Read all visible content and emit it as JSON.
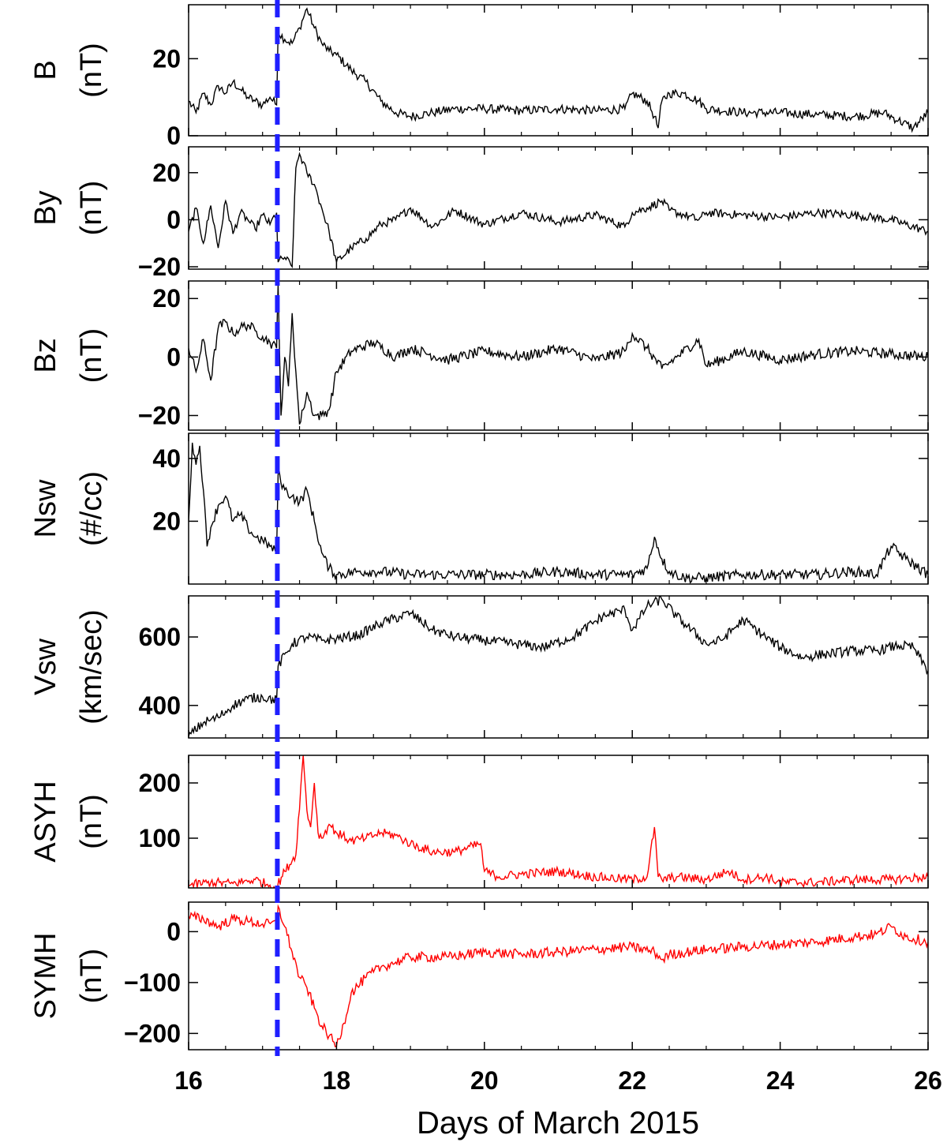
{
  "figure": {
    "xlabel": "Days of March 2015",
    "xlim": [
      16,
      26
    ],
    "xticks": [
      16,
      18,
      20,
      22,
      24,
      26
    ],
    "event_marker": {
      "x": 17.2,
      "color": "#1f1fff",
      "style": "dashed"
    }
  },
  "chart_data": [
    {
      "type": "line",
      "name_line1": "B",
      "name_line2": "(nT)",
      "color": "#000000",
      "ylim": [
        0,
        34
      ],
      "yticks": [
        0,
        20
      ],
      "ytick_labels": [
        "0",
        "20"
      ],
      "x": [
        16.0,
        16.1,
        16.2,
        16.3,
        16.4,
        16.5,
        16.6,
        16.7,
        16.8,
        16.9,
        17.0,
        17.1,
        17.19,
        17.21,
        17.3,
        17.4,
        17.5,
        17.6,
        17.7,
        17.8,
        17.9,
        18.0,
        18.2,
        18.4,
        18.6,
        18.8,
        19.0,
        19.3,
        19.6,
        20.0,
        20.5,
        21.0,
        21.5,
        21.9,
        22.0,
        22.2,
        22.3,
        22.35,
        22.4,
        22.5,
        22.7,
        22.9,
        23.0,
        23.5,
        24.0,
        24.5,
        25.0,
        25.4,
        25.6,
        25.8,
        26.0
      ],
      "y": [
        9,
        6,
        11,
        8,
        13,
        11,
        14,
        12,
        10,
        9,
        8,
        10,
        8,
        27,
        25,
        24,
        28,
        33,
        28,
        24,
        22,
        21,
        17,
        14,
        9,
        6,
        5,
        6,
        7,
        7,
        6.5,
        7,
        6.5,
        7,
        11,
        9,
        5,
        2,
        9,
        11,
        11,
        9,
        7,
        6,
        6,
        5.5,
        5,
        6,
        4,
        2,
        6
      ]
    },
    {
      "type": "line",
      "name_line1": "By",
      "name_line2": "(nT)",
      "color": "#000000",
      "ylim": [
        -21,
        31
      ],
      "yticks": [
        -20,
        0,
        20
      ],
      "ytick_labels": [
        "−20",
        "0",
        "20"
      ],
      "x": [
        16.0,
        16.1,
        16.2,
        16.3,
        16.4,
        16.5,
        16.6,
        16.7,
        16.8,
        16.9,
        17.0,
        17.1,
        17.19,
        17.21,
        17.3,
        17.4,
        17.45,
        17.5,
        17.6,
        17.7,
        17.8,
        17.9,
        18.0,
        18.2,
        18.4,
        18.6,
        18.8,
        19.0,
        19.3,
        19.6,
        20.0,
        20.5,
        21.0,
        21.5,
        21.9,
        22.0,
        22.2,
        22.4,
        22.5,
        22.7,
        22.9,
        23.0,
        23.5,
        24.0,
        24.5,
        25.0,
        25.5,
        26.0
      ],
      "y": [
        -5,
        5,
        -10,
        6,
        -12,
        8,
        -6,
        3,
        0,
        -4,
        2,
        -2,
        3,
        -18,
        -16,
        -20,
        22,
        28,
        20,
        15,
        5,
        -5,
        -18,
        -12,
        -8,
        -2,
        0,
        5,
        -3,
        4,
        -2,
        3,
        -1,
        2,
        -3,
        3,
        5,
        8,
        4,
        2,
        0,
        3,
        2,
        1,
        3,
        2,
        0,
        -5
      ]
    },
    {
      "type": "line",
      "name_line1": "Bz",
      "name_line2": "(nT)",
      "color": "#000000",
      "ylim": [
        -25,
        26
      ],
      "yticks": [
        -20,
        0,
        20
      ],
      "ytick_labels": [
        "−20",
        "0",
        "20"
      ],
      "x": [
        16.0,
        16.1,
        16.2,
        16.3,
        16.4,
        16.5,
        16.6,
        16.7,
        16.8,
        16.9,
        17.0,
        17.1,
        17.19,
        17.21,
        17.25,
        17.3,
        17.35,
        17.4,
        17.45,
        17.5,
        17.55,
        17.6,
        17.7,
        17.8,
        17.9,
        18.0,
        18.2,
        18.5,
        18.8,
        19.0,
        19.5,
        20.0,
        20.5,
        21.0,
        21.5,
        21.9,
        22.0,
        22.2,
        22.4,
        22.6,
        22.9,
        23.0,
        23.5,
        24.0,
        24.5,
        25.0,
        25.5,
        26.0
      ],
      "y": [
        3,
        -5,
        6,
        -8,
        10,
        12,
        8,
        10,
        11,
        9,
        7,
        5,
        3,
        25,
        -20,
        0,
        -10,
        15,
        -5,
        -23,
        -18,
        -12,
        -20,
        -20,
        -18,
        -5,
        2,
        5,
        0,
        3,
        -1,
        2,
        0,
        3,
        -1,
        2,
        8,
        3,
        -4,
        0,
        6,
        -3,
        2,
        -1,
        1,
        2,
        1,
        0
      ]
    },
    {
      "type": "line",
      "name_line1": "Nsw",
      "name_line2": "(#/cc)",
      "color": "#000000",
      "ylim": [
        0,
        48
      ],
      "yticks": [
        20,
        40
      ],
      "ytick_labels": [
        "20",
        "40"
      ],
      "x": [
        16.0,
        16.05,
        16.1,
        16.15,
        16.2,
        16.25,
        16.3,
        16.4,
        16.5,
        16.6,
        16.7,
        16.8,
        16.9,
        17.0,
        17.1,
        17.19,
        17.21,
        17.3,
        17.4,
        17.5,
        17.6,
        17.7,
        17.8,
        17.9,
        18.0,
        18.3,
        18.6,
        19.0,
        19.5,
        20.0,
        20.5,
        21.0,
        21.5,
        21.9,
        22.0,
        22.2,
        22.3,
        22.4,
        22.5,
        22.7,
        23.0,
        23.5,
        24.0,
        24.5,
        25.0,
        25.3,
        25.5,
        25.7,
        26.0
      ],
      "y": [
        20,
        45,
        38,
        44,
        30,
        12,
        18,
        25,
        28,
        20,
        22,
        18,
        15,
        14,
        12,
        10,
        35,
        30,
        28,
        26,
        30,
        20,
        10,
        5,
        3,
        4,
        4,
        3,
        3,
        3,
        3,
        4,
        3,
        3,
        3,
        5,
        15,
        8,
        4,
        2,
        2,
        3,
        3,
        3,
        4,
        3,
        12,
        8,
        3
      ]
    },
    {
      "type": "line",
      "name_line1": "Vsw",
      "name_line2": "(km/sec)",
      "color": "#000000",
      "ylim": [
        305,
        720
      ],
      "yticks": [
        400,
        600
      ],
      "ytick_labels": [
        "400",
        "600"
      ],
      "x": [
        16.0,
        16.2,
        16.4,
        16.6,
        16.8,
        17.0,
        17.19,
        17.21,
        17.4,
        17.6,
        17.8,
        18.0,
        18.3,
        18.6,
        19.0,
        19.3,
        19.6,
        20.0,
        20.4,
        20.8,
        21.2,
        21.6,
        21.9,
        22.0,
        22.2,
        22.4,
        22.6,
        22.8,
        23.0,
        23.2,
        23.5,
        23.8,
        24.0,
        24.3,
        24.6,
        25.0,
        25.3,
        25.6,
        25.8,
        26.0
      ],
      "y": [
        310,
        350,
        365,
        400,
        420,
        425,
        415,
        515,
        580,
        600,
        590,
        595,
        605,
        640,
        670,
        620,
        600,
        590,
        580,
        570,
        600,
        660,
        680,
        620,
        690,
        710,
        660,
        620,
        580,
        590,
        650,
        600,
        570,
        540,
        550,
        560,
        560,
        575,
        570,
        500
      ]
    },
    {
      "type": "line",
      "name_line1": "ASYH",
      "name_line2": "(nT)",
      "color": "#ff0000",
      "ylim": [
        10,
        250
      ],
      "yticks": [
        100,
        200
      ],
      "ytick_labels": [
        "100",
        "200"
      ],
      "x": [
        16.0,
        16.3,
        16.6,
        16.9,
        17.1,
        17.19,
        17.3,
        17.45,
        17.55,
        17.6,
        17.65,
        17.7,
        17.75,
        17.8,
        17.9,
        18.0,
        18.2,
        18.4,
        18.6,
        18.8,
        19.0,
        19.3,
        19.6,
        19.95,
        20.0,
        20.2,
        20.5,
        21.0,
        21.5,
        22.0,
        22.2,
        22.3,
        22.35,
        22.4,
        22.6,
        23.0,
        23.3,
        23.5,
        23.8,
        24.0,
        24.5,
        25.0,
        25.5,
        26.0
      ],
      "y": [
        15,
        20,
        18,
        25,
        15,
        12,
        40,
        70,
        250,
        150,
        120,
        200,
        110,
        100,
        125,
        110,
        95,
        100,
        110,
        105,
        90,
        75,
        75,
        90,
        40,
        30,
        35,
        40,
        30,
        25,
        30,
        120,
        30,
        25,
        30,
        25,
        40,
        25,
        30,
        20,
        20,
        25,
        25,
        30
      ]
    },
    {
      "type": "line",
      "name_line1": "SYMH",
      "name_line2": "(nT)",
      "color": "#ff0000",
      "ylim": [
        -232,
        58
      ],
      "yticks": [
        -200,
        -100,
        0
      ],
      "ytick_labels": [
        "−200",
        "−100",
        "0"
      ],
      "x": [
        16.0,
        16.2,
        16.4,
        16.6,
        16.8,
        17.0,
        17.19,
        17.21,
        17.3,
        17.4,
        17.5,
        17.6,
        17.7,
        17.8,
        17.9,
        18.0,
        18.1,
        18.2,
        18.4,
        18.6,
        18.8,
        19.0,
        19.5,
        20.0,
        20.5,
        21.0,
        21.5,
        22.0,
        22.3,
        22.4,
        22.5,
        23.0,
        23.5,
        24.0,
        24.5,
        25.0,
        25.3,
        25.5,
        25.7,
        26.0
      ],
      "y": [
        30,
        25,
        10,
        25,
        20,
        15,
        15,
        50,
        10,
        -40,
        -90,
        -110,
        -150,
        -185,
        -205,
        -225,
        -180,
        -120,
        -90,
        -70,
        -60,
        -50,
        -50,
        -40,
        -45,
        -40,
        -35,
        -30,
        -40,
        -55,
        -45,
        -35,
        -30,
        -25,
        -20,
        -10,
        -5,
        10,
        -10,
        -20
      ]
    }
  ]
}
